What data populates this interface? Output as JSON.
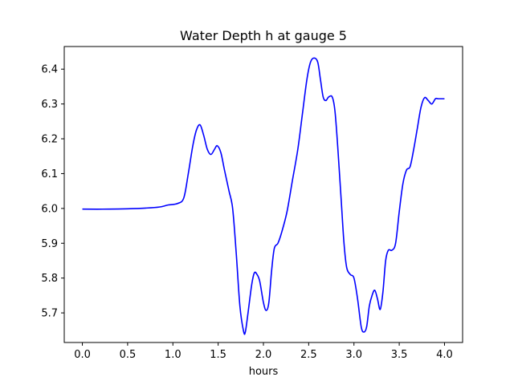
{
  "chart_data": {
    "type": "line",
    "title": "Water Depth h at gauge 5",
    "xlabel": "hours",
    "ylabel": "",
    "xlim": [
      -0.2,
      4.2
    ],
    "ylim": [
      5.615,
      6.465
    ],
    "xticks": [
      0.0,
      0.5,
      1.0,
      1.5,
      2.0,
      2.5,
      3.0,
      3.5,
      4.0
    ],
    "xtick_labels": [
      "0.0",
      "0.5",
      "1.0",
      "1.5",
      "2.0",
      "2.5",
      "3.0",
      "3.5",
      "4.0"
    ],
    "yticks": [
      5.7,
      5.8,
      5.9,
      6.0,
      6.1,
      6.2,
      6.3,
      6.4
    ],
    "ytick_labels": [
      "5.7",
      "5.8",
      "5.9",
      "6.0",
      "6.1",
      "6.2",
      "6.3",
      "6.4"
    ],
    "grid": false,
    "legend": "none",
    "series": [
      {
        "color": "#0000ff",
        "x": [
          0.0,
          0.3,
          0.5,
          0.7,
          0.85,
          0.95,
          1.05,
          1.12,
          1.17,
          1.22,
          1.26,
          1.3,
          1.34,
          1.38,
          1.42,
          1.46,
          1.49,
          1.53,
          1.57,
          1.62,
          1.66,
          1.7,
          1.74,
          1.78,
          1.8,
          1.83,
          1.87,
          1.9,
          1.93,
          1.96,
          2.0,
          2.03,
          2.06,
          2.09,
          2.12,
          2.16,
          2.2,
          2.26,
          2.32,
          2.38,
          2.43,
          2.48,
          2.52,
          2.56,
          2.6,
          2.63,
          2.66,
          2.69,
          2.72,
          2.76,
          2.79,
          2.82,
          2.86,
          2.89,
          2.92,
          2.96,
          3.0,
          3.04,
          3.08,
          3.11,
          3.14,
          3.17,
          3.2,
          3.23,
          3.26,
          3.29,
          3.32,
          3.35,
          3.38,
          3.42,
          3.46,
          3.5,
          3.54,
          3.58,
          3.62,
          3.66,
          3.7,
          3.74,
          3.78,
          3.82,
          3.86,
          3.9,
          3.93,
          3.96,
          4.0
        ],
        "y": [
          5.998,
          5.998,
          5.999,
          6.001,
          6.004,
          6.01,
          6.014,
          6.03,
          6.1,
          6.18,
          6.225,
          6.24,
          6.21,
          6.17,
          6.155,
          6.17,
          6.18,
          6.16,
          6.11,
          6.05,
          6.0,
          5.87,
          5.72,
          5.648,
          5.645,
          5.7,
          5.78,
          5.815,
          5.81,
          5.79,
          5.73,
          5.707,
          5.73,
          5.82,
          5.885,
          5.9,
          5.93,
          5.99,
          6.08,
          6.17,
          6.27,
          6.37,
          6.42,
          6.432,
          6.42,
          6.37,
          6.32,
          6.31,
          6.32,
          6.32,
          6.28,
          6.18,
          6.02,
          5.9,
          5.83,
          5.81,
          5.8,
          5.74,
          5.66,
          5.645,
          5.66,
          5.72,
          5.75,
          5.765,
          5.74,
          5.71,
          5.76,
          5.85,
          5.88,
          5.88,
          5.9,
          5.99,
          6.07,
          6.11,
          6.12,
          6.17,
          6.23,
          6.29,
          6.318,
          6.31,
          6.3,
          6.315,
          6.315,
          6.315,
          6.315
        ]
      }
    ]
  }
}
